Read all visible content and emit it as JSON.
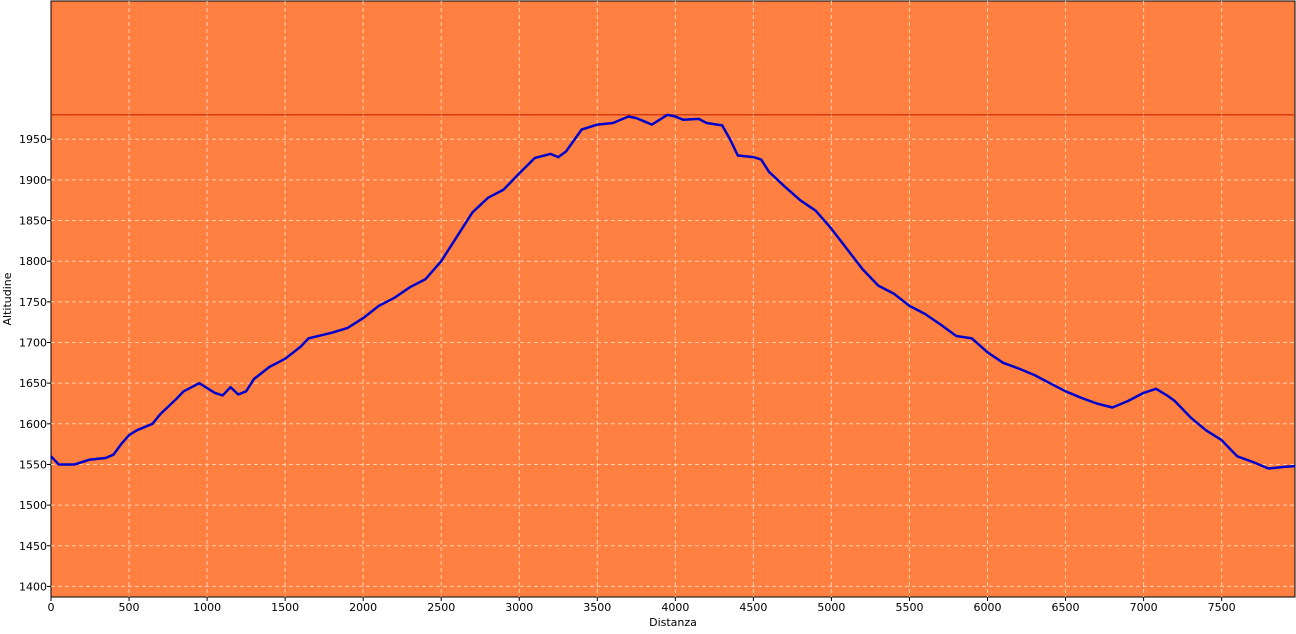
{
  "chart_data": {
    "type": "line",
    "title": "",
    "xlabel": "Distanza",
    "ylabel": "Altitudine",
    "xlim": [
      0,
      7970
    ],
    "ylim": [
      1387,
      2120
    ],
    "x_ticks": [
      0,
      500,
      1000,
      1500,
      2000,
      2500,
      3000,
      3500,
      4000,
      4500,
      5000,
      5500,
      6000,
      6500,
      7000,
      7500
    ],
    "y_ticks": [
      1400,
      1450,
      1500,
      1550,
      1600,
      1650,
      1700,
      1750,
      1800,
      1850,
      1900,
      1950
    ],
    "grid": true,
    "legend": "none",
    "reference_line": {
      "y": 1980,
      "color": "#cc2200"
    },
    "colors": {
      "plot_background": "#ff8040",
      "line": "#0000cc",
      "grid": "#ffd0b0"
    },
    "series": [
      {
        "values": [
          [
            0,
            1560
          ],
          [
            50,
            1550
          ],
          [
            150,
            1550
          ],
          [
            250,
            1556
          ],
          [
            350,
            1558
          ],
          [
            400,
            1562
          ],
          [
            450,
            1575
          ],
          [
            500,
            1586
          ],
          [
            550,
            1592
          ],
          [
            650,
            1600
          ],
          [
            700,
            1612
          ],
          [
            800,
            1630
          ],
          [
            850,
            1640
          ],
          [
            950,
            1650
          ],
          [
            1050,
            1638
          ],
          [
            1100,
            1635
          ],
          [
            1150,
            1645
          ],
          [
            1200,
            1636
          ],
          [
            1250,
            1640
          ],
          [
            1300,
            1655
          ],
          [
            1400,
            1670
          ],
          [
            1500,
            1680
          ],
          [
            1600,
            1695
          ],
          [
            1650,
            1705
          ],
          [
            1800,
            1712
          ],
          [
            1900,
            1718
          ],
          [
            2000,
            1730
          ],
          [
            2100,
            1745
          ],
          [
            2200,
            1755
          ],
          [
            2300,
            1768
          ],
          [
            2400,
            1778
          ],
          [
            2500,
            1800
          ],
          [
            2600,
            1830
          ],
          [
            2700,
            1860
          ],
          [
            2800,
            1878
          ],
          [
            2900,
            1888
          ],
          [
            3000,
            1908
          ],
          [
            3100,
            1927
          ],
          [
            3200,
            1932
          ],
          [
            3250,
            1928
          ],
          [
            3300,
            1935
          ],
          [
            3400,
            1962
          ],
          [
            3500,
            1968
          ],
          [
            3600,
            1970
          ],
          [
            3700,
            1978
          ],
          [
            3750,
            1976
          ],
          [
            3800,
            1972
          ],
          [
            3850,
            1968
          ],
          [
            3950,
            1980
          ],
          [
            4000,
            1978
          ],
          [
            4050,
            1974
          ],
          [
            4150,
            1975
          ],
          [
            4200,
            1970
          ],
          [
            4300,
            1967
          ],
          [
            4350,
            1950
          ],
          [
            4400,
            1930
          ],
          [
            4500,
            1928
          ],
          [
            4550,
            1925
          ],
          [
            4600,
            1910
          ],
          [
            4700,
            1892
          ],
          [
            4800,
            1875
          ],
          [
            4900,
            1862
          ],
          [
            5000,
            1840
          ],
          [
            5100,
            1815
          ],
          [
            5200,
            1790
          ],
          [
            5300,
            1770
          ],
          [
            5400,
            1760
          ],
          [
            5500,
            1745
          ],
          [
            5600,
            1735
          ],
          [
            5700,
            1722
          ],
          [
            5800,
            1708
          ],
          [
            5900,
            1705
          ],
          [
            6000,
            1688
          ],
          [
            6100,
            1675
          ],
          [
            6200,
            1668
          ],
          [
            6300,
            1660
          ],
          [
            6400,
            1650
          ],
          [
            6500,
            1640
          ],
          [
            6600,
            1632
          ],
          [
            6700,
            1625
          ],
          [
            6800,
            1620
          ],
          [
            6900,
            1628
          ],
          [
            7000,
            1638
          ],
          [
            7080,
            1643
          ],
          [
            7150,
            1635
          ],
          [
            7200,
            1628
          ],
          [
            7300,
            1608
          ],
          [
            7400,
            1592
          ],
          [
            7500,
            1580
          ],
          [
            7550,
            1570
          ],
          [
            7600,
            1560
          ],
          [
            7700,
            1553
          ],
          [
            7800,
            1545
          ],
          [
            7900,
            1547
          ],
          [
            7970,
            1548
          ]
        ]
      }
    ]
  }
}
